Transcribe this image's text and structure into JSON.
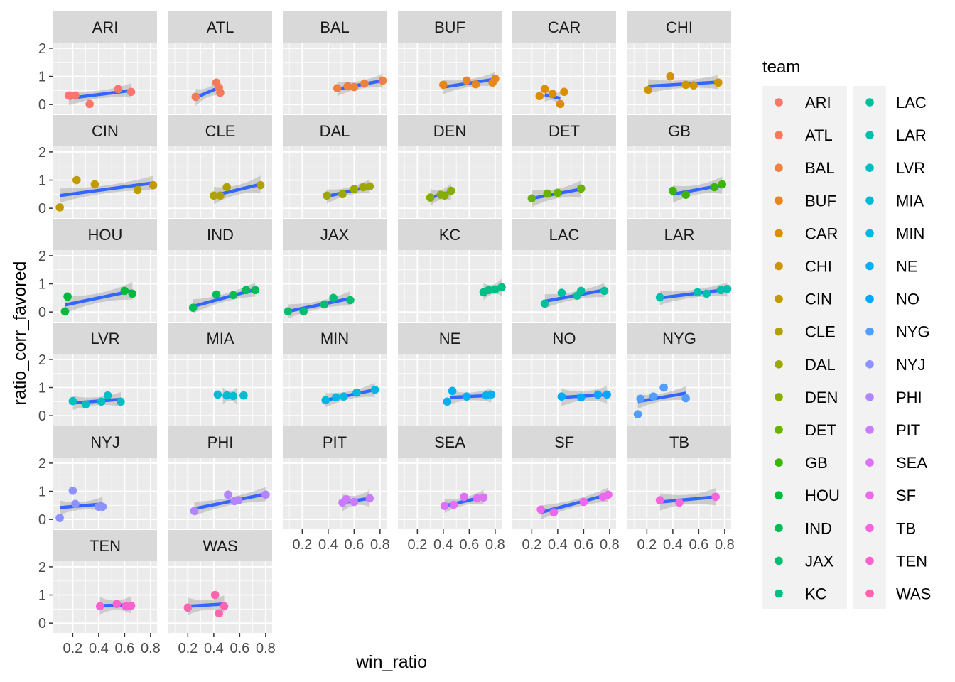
{
  "chart_data": {
    "type": "scatter",
    "xlabel": "win_ratio",
    "ylabel": "ratio_corr_favored",
    "xlim": [
      0.05,
      0.85
    ],
    "ylim": [
      -0.35,
      2.2
    ],
    "x_ticks": [
      0.2,
      0.4,
      0.6,
      0.8
    ],
    "x_tick_labels": [
      "0.2",
      "0.4",
      "0.6",
      "0.8"
    ],
    "y_ticks": [
      0,
      1,
      2
    ],
    "y_tick_labels": [
      "0",
      "1",
      "2"
    ],
    "facet_by": "team",
    "grid": true,
    "trend": "linear fit with confidence band",
    "legend": {
      "title": "team",
      "position": "right",
      "columns": 2
    },
    "panels": [
      {
        "team": "ARI",
        "color": "#F8766D",
        "points": [
          [
            0.17,
            0.32
          ],
          [
            0.22,
            0.32
          ],
          [
            0.33,
            0.02
          ],
          [
            0.55,
            0.55
          ],
          [
            0.65,
            0.45
          ]
        ],
        "fit": [
          [
            0.17,
            0.22
          ],
          [
            0.65,
            0.5
          ]
        ]
      },
      {
        "team": "ATL",
        "color": "#F37B59",
        "points": [
          [
            0.26,
            0.27
          ],
          [
            0.42,
            0.78
          ],
          [
            0.44,
            0.6
          ],
          [
            0.45,
            0.42
          ]
        ],
        "fit": [
          [
            0.26,
            0.25
          ],
          [
            0.45,
            0.62
          ]
        ]
      },
      {
        "team": "BAL",
        "color": "#ED8141",
        "points": [
          [
            0.47,
            0.58
          ],
          [
            0.55,
            0.65
          ],
          [
            0.6,
            0.62
          ],
          [
            0.68,
            0.75
          ],
          [
            0.82,
            0.85
          ]
        ],
        "fit": [
          [
            0.47,
            0.55
          ],
          [
            0.82,
            0.85
          ]
        ]
      },
      {
        "team": "BUF",
        "color": "#E7861B",
        "points": [
          [
            0.4,
            0.7
          ],
          [
            0.58,
            0.85
          ],
          [
            0.65,
            0.72
          ],
          [
            0.78,
            0.78
          ],
          [
            0.8,
            0.92
          ]
        ],
        "fit": [
          [
            0.4,
            0.62
          ],
          [
            0.8,
            0.9
          ]
        ]
      },
      {
        "team": "CAR",
        "color": "#DB8E00",
        "points": [
          [
            0.26,
            0.3
          ],
          [
            0.3,
            0.55
          ],
          [
            0.36,
            0.38
          ],
          [
            0.42,
            0.02
          ],
          [
            0.45,
            0.45
          ]
        ],
        "fit": [
          [
            0.3,
            0.35
          ],
          [
            0.42,
            0.22
          ]
        ]
      },
      {
        "team": "CHI",
        "color": "#CF9400",
        "points": [
          [
            0.21,
            0.52
          ],
          [
            0.38,
            1.0
          ],
          [
            0.5,
            0.7
          ],
          [
            0.56,
            0.68
          ],
          [
            0.75,
            0.78
          ]
        ],
        "fit": [
          [
            0.21,
            0.65
          ],
          [
            0.75,
            0.8
          ]
        ]
      },
      {
        "team": "CIN",
        "color": "#C09B00",
        "points": [
          [
            0.1,
            0.03
          ],
          [
            0.23,
            1.0
          ],
          [
            0.37,
            0.85
          ],
          [
            0.7,
            0.65
          ],
          [
            0.82,
            0.82
          ]
        ],
        "fit": [
          [
            0.1,
            0.45
          ],
          [
            0.82,
            0.9
          ]
        ]
      },
      {
        "team": "CLE",
        "color": "#AFA100",
        "points": [
          [
            0.4,
            0.45
          ],
          [
            0.45,
            0.45
          ],
          [
            0.5,
            0.75
          ],
          [
            0.76,
            0.82
          ]
        ],
        "fit": [
          [
            0.4,
            0.45
          ],
          [
            0.76,
            0.85
          ]
        ]
      },
      {
        "team": "DAL",
        "color": "#9CA700",
        "points": [
          [
            0.39,
            0.45
          ],
          [
            0.51,
            0.5
          ],
          [
            0.6,
            0.68
          ],
          [
            0.67,
            0.75
          ],
          [
            0.72,
            0.78
          ]
        ],
        "fit": [
          [
            0.39,
            0.42
          ],
          [
            0.72,
            0.78
          ]
        ]
      },
      {
        "team": "DEN",
        "color": "#85AD00",
        "points": [
          [
            0.3,
            0.38
          ],
          [
            0.38,
            0.48
          ],
          [
            0.41,
            0.45
          ],
          [
            0.46,
            0.62
          ]
        ],
        "fit": [
          [
            0.3,
            0.38
          ],
          [
            0.46,
            0.58
          ]
        ]
      },
      {
        "team": "DET",
        "color": "#68B200",
        "points": [
          [
            0.2,
            0.35
          ],
          [
            0.32,
            0.52
          ],
          [
            0.4,
            0.55
          ],
          [
            0.58,
            0.7
          ]
        ],
        "fit": [
          [
            0.2,
            0.35
          ],
          [
            0.58,
            0.68
          ]
        ]
      },
      {
        "team": "GB",
        "color": "#3BB600",
        "points": [
          [
            0.4,
            0.62
          ],
          [
            0.5,
            0.48
          ],
          [
            0.72,
            0.75
          ],
          [
            0.78,
            0.85
          ]
        ],
        "fit": [
          [
            0.4,
            0.5
          ],
          [
            0.78,
            0.82
          ]
        ]
      },
      {
        "team": "HOU",
        "color": "#00BA38",
        "points": [
          [
            0.14,
            0.02
          ],
          [
            0.16,
            0.55
          ],
          [
            0.6,
            0.75
          ],
          [
            0.66,
            0.65
          ]
        ],
        "fit": [
          [
            0.14,
            0.25
          ],
          [
            0.66,
            0.75
          ]
        ]
      },
      {
        "team": "IND",
        "color": "#00BC59",
        "points": [
          [
            0.24,
            0.15
          ],
          [
            0.42,
            0.62
          ],
          [
            0.55,
            0.6
          ],
          [
            0.65,
            0.78
          ],
          [
            0.72,
            0.78
          ]
        ],
        "fit": [
          [
            0.24,
            0.2
          ],
          [
            0.72,
            0.8
          ]
        ]
      },
      {
        "team": "JAX",
        "color": "#00BE70",
        "points": [
          [
            0.09,
            0.02
          ],
          [
            0.21,
            0.02
          ],
          [
            0.37,
            0.27
          ],
          [
            0.44,
            0.5
          ],
          [
            0.57,
            0.42
          ]
        ],
        "fit": [
          [
            0.09,
            0.02
          ],
          [
            0.57,
            0.48
          ]
        ]
      },
      {
        "team": "KC",
        "color": "#00BF86",
        "points": [
          [
            0.71,
            0.7
          ],
          [
            0.75,
            0.78
          ],
          [
            0.8,
            0.8
          ],
          [
            0.85,
            0.88
          ]
        ],
        "fit": [
          [
            0.71,
            0.72
          ],
          [
            0.85,
            0.88
          ]
        ]
      },
      {
        "team": "LAC",
        "color": "#00C09B",
        "points": [
          [
            0.3,
            0.3
          ],
          [
            0.43,
            0.68
          ],
          [
            0.55,
            0.58
          ],
          [
            0.58,
            0.75
          ],
          [
            0.76,
            0.75
          ]
        ],
        "fit": [
          [
            0.3,
            0.38
          ],
          [
            0.76,
            0.78
          ]
        ]
      },
      {
        "team": "LAR",
        "color": "#00BFAF",
        "points": [
          [
            0.3,
            0.52
          ],
          [
            0.59,
            0.7
          ],
          [
            0.66,
            0.65
          ],
          [
            0.77,
            0.78
          ],
          [
            0.82,
            0.82
          ]
        ],
        "fit": [
          [
            0.3,
            0.5
          ],
          [
            0.82,
            0.8
          ]
        ]
      },
      {
        "team": "LVR",
        "color": "#00BEC2",
        "points": [
          [
            0.2,
            0.52
          ],
          [
            0.3,
            0.4
          ],
          [
            0.42,
            0.5
          ],
          [
            0.47,
            0.72
          ],
          [
            0.57,
            0.5
          ]
        ],
        "fit": [
          [
            0.2,
            0.45
          ],
          [
            0.57,
            0.58
          ]
        ]
      },
      {
        "team": "MIA",
        "color": "#00BBD3",
        "points": [
          [
            0.43,
            0.75
          ],
          [
            0.5,
            0.72
          ],
          [
            0.55,
            0.7
          ],
          [
            0.63,
            0.72
          ]
        ],
        "fit": [
          [
            0.47,
            0.7
          ],
          [
            0.58,
            0.7
          ]
        ]
      },
      {
        "team": "MIN",
        "color": "#00B7E4",
        "points": [
          [
            0.38,
            0.55
          ],
          [
            0.46,
            0.65
          ],
          [
            0.52,
            0.68
          ],
          [
            0.62,
            0.82
          ],
          [
            0.76,
            0.92
          ]
        ],
        "fit": [
          [
            0.38,
            0.55
          ],
          [
            0.76,
            0.92
          ]
        ]
      },
      {
        "team": "NE",
        "color": "#00B0F2",
        "points": [
          [
            0.43,
            0.5
          ],
          [
            0.47,
            0.88
          ],
          [
            0.58,
            0.68
          ],
          [
            0.73,
            0.72
          ],
          [
            0.77,
            0.75
          ]
        ],
        "fit": [
          [
            0.45,
            0.65
          ],
          [
            0.77,
            0.72
          ]
        ]
      },
      {
        "team": "NO",
        "color": "#00A8FF",
        "points": [
          [
            0.43,
            0.68
          ],
          [
            0.58,
            0.65
          ],
          [
            0.71,
            0.75
          ],
          [
            0.78,
            0.75
          ]
        ],
        "fit": [
          [
            0.43,
            0.65
          ],
          [
            0.78,
            0.75
          ]
        ]
      },
      {
        "team": "NYG",
        "color": "#529EFF",
        "points": [
          [
            0.13,
            0.05
          ],
          [
            0.15,
            0.6
          ],
          [
            0.25,
            0.68
          ],
          [
            0.33,
            1.0
          ],
          [
            0.5,
            0.62
          ]
        ],
        "fit": [
          [
            0.13,
            0.5
          ],
          [
            0.5,
            0.8
          ]
        ]
      },
      {
        "team": "NYJ",
        "color": "#8E92FF",
        "points": [
          [
            0.1,
            0.05
          ],
          [
            0.2,
            1.02
          ],
          [
            0.22,
            0.55
          ],
          [
            0.4,
            0.45
          ],
          [
            0.43,
            0.45
          ]
        ],
        "fit": [
          [
            0.1,
            0.42
          ],
          [
            0.43,
            0.55
          ]
        ]
      },
      {
        "team": "PHI",
        "color": "#B385FF",
        "points": [
          [
            0.25,
            0.3
          ],
          [
            0.51,
            0.88
          ],
          [
            0.56,
            0.65
          ],
          [
            0.59,
            0.68
          ],
          [
            0.8,
            0.88
          ]
        ],
        "fit": [
          [
            0.25,
            0.38
          ],
          [
            0.8,
            0.9
          ]
        ]
      },
      {
        "team": "PIT",
        "color": "#CB7BFF",
        "points": [
          [
            0.51,
            0.6
          ],
          [
            0.54,
            0.72
          ],
          [
            0.6,
            0.62
          ],
          [
            0.72,
            0.75
          ]
        ],
        "fit": [
          [
            0.51,
            0.6
          ],
          [
            0.72,
            0.75
          ]
        ]
      },
      {
        "team": "SEA",
        "color": "#DF70F8",
        "points": [
          [
            0.41,
            0.48
          ],
          [
            0.48,
            0.52
          ],
          [
            0.56,
            0.8
          ],
          [
            0.66,
            0.75
          ],
          [
            0.71,
            0.78
          ]
        ],
        "fit": [
          [
            0.41,
            0.48
          ],
          [
            0.71,
            0.8
          ]
        ]
      },
      {
        "team": "SF",
        "color": "#ED68ED",
        "points": [
          [
            0.27,
            0.35
          ],
          [
            0.37,
            0.25
          ],
          [
            0.6,
            0.62
          ],
          [
            0.75,
            0.8
          ],
          [
            0.79,
            0.88
          ]
        ],
        "fit": [
          [
            0.27,
            0.25
          ],
          [
            0.79,
            0.88
          ]
        ]
      },
      {
        "team": "TB",
        "color": "#F863DF",
        "points": [
          [
            0.3,
            0.68
          ],
          [
            0.45,
            0.6
          ],
          [
            0.73,
            0.8
          ]
        ],
        "fit": [
          [
            0.3,
            0.62
          ],
          [
            0.73,
            0.8
          ]
        ]
      },
      {
        "team": "TEN",
        "color": "#FE61CF",
        "points": [
          [
            0.41,
            0.6
          ],
          [
            0.54,
            0.68
          ],
          [
            0.61,
            0.6
          ],
          [
            0.65,
            0.62
          ]
        ],
        "fit": [
          [
            0.41,
            0.62
          ],
          [
            0.65,
            0.65
          ]
        ]
      },
      {
        "team": "WAS",
        "color": "#FF65AE",
        "points": [
          [
            0.2,
            0.55
          ],
          [
            0.41,
            1.0
          ],
          [
            0.44,
            0.35
          ],
          [
            0.48,
            0.6
          ]
        ],
        "fit": [
          [
            0.2,
            0.6
          ],
          [
            0.48,
            0.68
          ]
        ]
      }
    ]
  }
}
